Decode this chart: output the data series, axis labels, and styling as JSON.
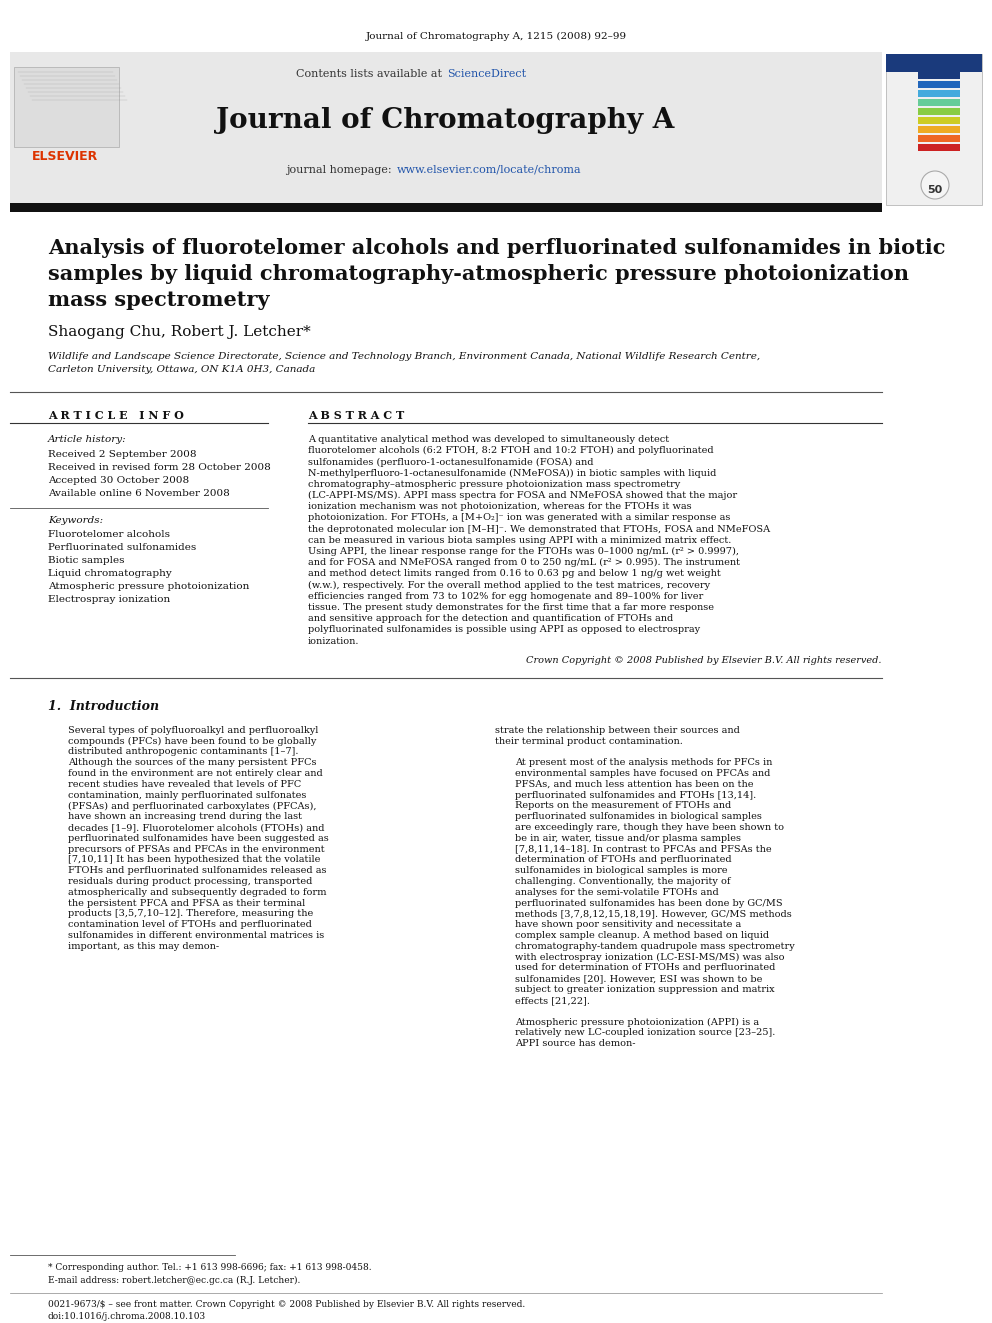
{
  "page_bg": "#ffffff",
  "top_journal_line": "Journal of Chromatography A, 1215 (2008) 92–99",
  "header_bg": "#e8e8e8",
  "contents_text": "Contents lists available at ",
  "sciencedirect_text": "ScienceDirect",
  "sciencedirect_color": "#2255aa",
  "journal_title": "Journal of Chromatography A",
  "homepage_label": "journal homepage: ",
  "homepage_url": "www.elsevier.com/locate/chroma",
  "homepage_color": "#2255aa",
  "thick_bar_color": "#222222",
  "article_title_line1": "Analysis of fluorotelomer alcohols and perfluorinated sulfonamides in biotic",
  "article_title_line2": "samples by liquid chromatography-atmospheric pressure photoionization",
  "article_title_line3": "mass spectrometry",
  "authors": "Shaogang Chu, Robert J. Letcher*",
  "affiliation_line1": "Wildlife and Landscape Science Directorate, Science and Technology Branch, Environment Canada, National Wildlife Research Centre,",
  "affiliation_line2": "Carleton University, Ottawa, ON K1A 0H3, Canada",
  "article_info_header": "A R T I C L E   I N F O",
  "abstract_header": "A B S T R A C T",
  "article_history_label": "Article history:",
  "history_lines": [
    "Received 2 September 2008",
    "Received in revised form 28 October 2008",
    "Accepted 30 October 2008",
    "Available online 6 November 2008"
  ],
  "keywords_label": "Keywords:",
  "keywords_lines": [
    "Fluorotelomer alcohols",
    "Perfluorinated sulfonamides",
    "Biotic samples",
    "Liquid chromatography",
    "Atmospheric pressure photoionization",
    "Electrospray ionization"
  ],
  "abstract_text": "A quantitative analytical method was developed to simultaneously detect fluorotelomer alcohols (6:2 FTOH, 8:2 FTOH and 10:2 FTOH) and polyfluorinated sulfonamides (perfluoro-1-octanesulfonamide (FOSA) and N-methylperfluoro-1-octanesulfonamide (NMeFOSA)) in biotic samples with liquid chromatography–atmospheric pressure photoionization mass spectrometry (LC-APPI-MS/MS). APPI mass spectra for FOSA and NMeFOSA showed that the major ionization mechanism was not photoionization, whereas for the FTOHs it was photoionization. For FTOHs, a [M+O₂]⁻ ion was generated with a similar response as the deprotonated molecular ion [M–H]⁻. We demonstrated that FTOHs, FOSA and NMeFOSA can be measured in various biota samples using APPI with a minimized matrix effect. Using APPI, the linear response range for the FTOHs was 0–1000 ng/mL (r² > 0.9997), and for FOSA and NMeFOSA ranged from 0 to 250 ng/mL (r² > 0.995). The instrument and method detect limits ranged from 0.16 to 0.63 pg and below 1 ng/g wet weight (w.w.), respectively. For the overall method applied to the test matrices, recovery efficiencies ranged from 73 to 102% for egg homogenate and 89–100% for liver tissue. The present study demonstrates for the first time that a far more response and sensitive approach for the detection and quantification of FTOHs and polyfluorinated sulfonamides is possible using APPI as opposed to electrospray ionization.",
  "crown_copyright": "Crown Copyright © 2008 Published by Elsevier B.V. All rights reserved.",
  "intro_header": "1.  Introduction",
  "intro_col1_para1": "Several types of polyfluoroalkyl and perfluoroalkyl compounds (PFCs) have been found to be globally distributed anthropogenic contaminants [1–7]. Although the sources of the many persistent PFCs found in the environment are not entirely clear and recent studies have revealed that levels of PFC contamination, mainly perfluorinated sulfonates (PFSAs) and perfluorinated carboxylates (PFCAs), have shown an increasing trend during the last decades [1–9]. Fluorotelomer alcohols (FTOHs) and perfluorinated sulfonamides have been suggested as precursors of PFSAs and PFCAs in the environment [7,10,11] It has been hypothesized that the volatile FTOHs and perfluorinated sulfonamides released as residuals during product processing, transported atmospherically and subsequently degraded to form the persistent PFCA and PFSA as their terminal products [3,5,7,10–12]. Therefore, measuring the contamination level of FTOHs and perfluorinated sulfonamides in different environmental matrices is important, as this may demon-",
  "intro_col2_para1": "strate the relationship between their sources and their terminal product contamination.",
  "intro_col2_para2": "At present most of the analysis methods for PFCs in environmental samples have focused on PFCAs and PFSAs, and much less attention has been on the perfluorinated sulfonamides and FTOHs [13,14]. Reports on the measurement of FTOHs and perfluorinated sulfonamides in biological samples are exceedingly rare, though they have been shown to be in air, water, tissue and/or plasma samples [7,8,11,14–18]. In contrast to PFCAs and PFSAs the determination of FTOHs and perfluorinated sulfonamides in biological samples is more challenging. Conventionally, the majority of analyses for the semi-volatile FTOHs and perfluorinated sulfonamides has been done by GC/MS methods [3,7,8,12,15,18,19]. However, GC/MS methods have shown poor sensitivity and necessitate a complex sample cleanup. A method based on liquid chromatography-tandem quadrupole mass spectrometry with electrospray ionization (LC-ESI-MS/MS) was also used for determination of FTOHs and perfluorinated sulfonamides [20]. However, ESI was shown to be subject to greater ionization suppression and matrix effects [21,22].",
  "intro_col2_para3": "Atmospheric pressure photoionization (APPI) is a relatively new LC-coupled ionization source [23–25]. APPI source has demon-",
  "footnote_star": "* Corresponding author. Tel.: +1 613 998-6696; fax: +1 613 998-0458.",
  "footnote_email": "E-mail address: robert.letcher@ec.gc.ca (R.J. Letcher).",
  "bottom_line1": "0021-9673/$ – see front matter. Crown Copyright © 2008 Published by Elsevier B.V. All rights reserved.",
  "bottom_line2": "doi:10.1016/j.chroma.2008.10.103",
  "bar_colors_right": [
    "#1a3a7c",
    "#1a3a7c",
    "#2266bb",
    "#44aadd",
    "#66cc99",
    "#88cc44",
    "#cccc22",
    "#eeaa22",
    "#ee6622",
    "#cc2222"
  ]
}
